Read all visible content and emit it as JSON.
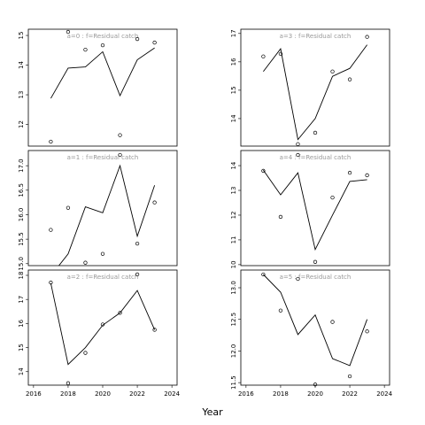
{
  "x_label": "Year",
  "chart_data": [
    {
      "type": "line",
      "title": "a=0  :  f=Residual catch",
      "x": [
        2017,
        2018,
        2019,
        2020,
        2021,
        2022,
        2023
      ],
      "series": [
        {
          "style": "line",
          "color": "#000000",
          "values": [
            12.88,
            13.9,
            13.94,
            14.45,
            12.97,
            14.18,
            14.58
          ]
        },
        {
          "style": "points",
          "color": "#000000",
          "values": [
            11.42,
            15.12,
            14.52,
            14.67,
            11.64,
            14.88,
            14.76
          ]
        }
      ],
      "xlim": [
        2015.7,
        2024.3
      ],
      "ylim": [
        11.27,
        15.21
      ],
      "yticks": [
        12,
        13,
        14,
        15
      ]
    },
    {
      "type": "line",
      "title": "a=1  :  f=Residual catch",
      "x": [
        2017,
        2018,
        2019,
        2020,
        2021,
        2022,
        2023
      ],
      "series": [
        {
          "style": "line",
          "color": "#000000",
          "values": [
            14.75,
            15.2,
            16.16,
            16.04,
            17.0,
            15.56,
            16.6
          ]
        },
        {
          "style": "points",
          "color": "#000000",
          "values": [
            15.69,
            16.14,
            15.02,
            15.2,
            17.22,
            15.41,
            16.25
          ]
        }
      ],
      "xlim": [
        2015.7,
        2024.3
      ],
      "ylim": [
        14.96,
        17.31
      ],
      "yticks": [
        {
          "value": 15,
          "label": "15.0"
        },
        15.5,
        {
          "value": 16,
          "label": "16.0"
        },
        16.5,
        {
          "value": 17,
          "label": "17.0"
        }
      ]
    },
    {
      "type": "line",
      "title": "a=2  :  f=Residual catch",
      "x": [
        2017,
        2018,
        2019,
        2020,
        2021,
        2022,
        2023
      ],
      "series": [
        {
          "style": "line",
          "color": "#000000",
          "values": [
            17.67,
            14.3,
            15.0,
            15.93,
            16.44,
            17.37,
            15.74
          ]
        },
        {
          "style": "points",
          "color": "#000000",
          "values": [
            17.7,
            13.52,
            14.78,
            15.96,
            16.44,
            18.04,
            15.74
          ]
        }
      ],
      "xlim": [
        2015.7,
        2024.3
      ],
      "ylim": [
        13.44,
        18.22
      ],
      "yticks": [
        14,
        15,
        16,
        17,
        18
      ],
      "xticks": [
        2016,
        2018,
        2020,
        2022,
        2024
      ]
    },
    {
      "type": "line",
      "title": "a=3  :  f=Residual catch",
      "x": [
        2017,
        2018,
        2019,
        2020,
        2021,
        2022,
        2023
      ],
      "series": [
        {
          "style": "line",
          "color": "#000000",
          "values": [
            15.66,
            16.46,
            13.26,
            14.0,
            15.49,
            15.77,
            16.6
          ]
        },
        {
          "style": "points",
          "color": "#000000",
          "values": [
            16.19,
            16.28,
            13.1,
            13.5,
            15.66,
            15.38,
            16.88
          ]
        }
      ],
      "xlim": [
        2015.7,
        2024.3
      ],
      "ylim": [
        13.03,
        17.15
      ],
      "yticks": [
        14,
        15,
        16,
        17
      ]
    },
    {
      "type": "line",
      "title": "a=4  :  f=Residual catch",
      "x": [
        2017,
        2018,
        2019,
        2020,
        2021,
        2022,
        2023
      ],
      "series": [
        {
          "style": "line",
          "color": "#000000",
          "values": [
            13.82,
            12.82,
            13.71,
            10.61,
            12.0,
            13.36,
            13.43
          ]
        },
        {
          "style": "points",
          "color": "#000000",
          "values": [
            13.79,
            11.93,
            14.43,
            10.11,
            12.71,
            13.71,
            13.61
          ]
        }
      ],
      "xlim": [
        2015.7,
        2024.3
      ],
      "ylim": [
        9.96,
        14.61
      ],
      "yticks": [
        10,
        11,
        12,
        13,
        14
      ]
    },
    {
      "type": "line",
      "title": "a=5  :  f=Residual catch",
      "x": [
        2017,
        2018,
        2019,
        2020,
        2021,
        2022,
        2023
      ],
      "series": [
        {
          "style": "line",
          "color": "#000000",
          "values": [
            13.21,
            12.93,
            12.26,
            12.57,
            11.88,
            11.77,
            12.5
          ]
        },
        {
          "style": "points",
          "color": "#000000",
          "values": [
            13.21,
            12.64,
            13.14,
            11.47,
            12.46,
            11.6,
            12.31
          ]
        }
      ],
      "xlim": [
        2015.7,
        2024.3
      ],
      "ylim": [
        11.46,
        13.28
      ],
      "yticks": [
        11.5,
        {
          "value": 12,
          "label": "12.0"
        },
        12.5,
        {
          "value": 13,
          "label": "13.0"
        }
      ],
      "xticks": [
        2016,
        2018,
        2020,
        2022,
        2024
      ]
    }
  ]
}
